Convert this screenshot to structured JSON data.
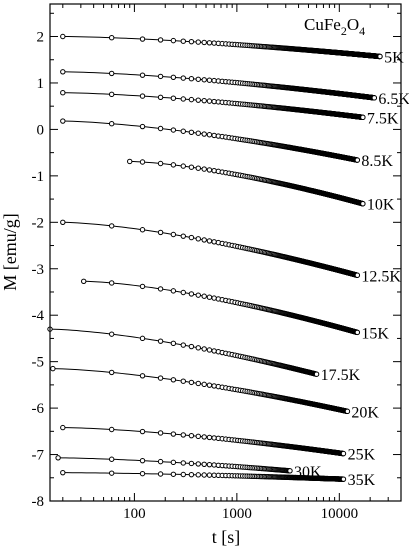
{
  "chart_data": {
    "type": "scatter",
    "title": "CuFe2O4",
    "title_main": "CuFe",
    "title_sub1": "2",
    "title_mid": "O",
    "title_sub2": "4",
    "xlabel": "t [s]",
    "ylabel": "M [emu/g]",
    "xscale": "log",
    "xlim": [
      15,
      40000
    ],
    "ylim": [
      -8,
      2.7
    ],
    "x_ticks": [
      {
        "value": 100,
        "label": "100"
      },
      {
        "value": 1000,
        "label": "1000"
      },
      {
        "value": 10000,
        "label": "10000"
      }
    ],
    "y_ticks": [
      {
        "value": 2,
        "label": "2"
      },
      {
        "value": 1,
        "label": "1"
      },
      {
        "value": 0,
        "label": "0"
      },
      {
        "value": -1,
        "label": "-1"
      },
      {
        "value": -2,
        "label": "-2"
      },
      {
        "value": -3,
        "label": "-3"
      },
      {
        "value": -4,
        "label": "-4"
      },
      {
        "value": -5,
        "label": "-5"
      },
      {
        "value": -6,
        "label": "-6"
      },
      {
        "value": -7,
        "label": "-7"
      },
      {
        "value": -8,
        "label": "-8"
      }
    ],
    "grid": false,
    "series": [
      {
        "name": "5K",
        "x_start": 20,
        "x_end": 25000,
        "y_start": 2.0,
        "y_end": 1.57
      },
      {
        "name": "6.5K",
        "x_start": 20,
        "x_end": 22000,
        "y_start": 1.24,
        "y_end": 0.68
      },
      {
        "name": "7.5K",
        "x_start": 20,
        "x_end": 17000,
        "y_start": 0.79,
        "y_end": 0.26
      },
      {
        "name": "8.5K",
        "x_start": 20,
        "x_end": 15000,
        "y_start": 0.18,
        "y_end": -0.66
      },
      {
        "name": "10K",
        "x_start": 90,
        "x_end": 17000,
        "y_start": -0.69,
        "y_end": -1.6
      },
      {
        "name": "12.5K",
        "x_start": 20,
        "x_end": 15000,
        "y_start": -2.0,
        "y_end": -3.14
      },
      {
        "name": "15K",
        "x_start": 32,
        "x_end": 15000,
        "y_start": -3.27,
        "y_end": -4.37
      },
      {
        "name": "17.5K",
        "x_start": 15,
        "x_end": 6000,
        "y_start": -4.3,
        "y_end": -5.27
      },
      {
        "name": "20K",
        "x_start": 16,
        "x_end": 12000,
        "y_start": -5.15,
        "y_end": -6.07
      },
      {
        "name": "25K",
        "x_start": 20,
        "x_end": 11000,
        "y_start": -6.42,
        "y_end": -6.98
      },
      {
        "name": "30K",
        "x_start": 18,
        "x_end": 3300,
        "y_start": -7.07,
        "y_end": -7.35
      },
      {
        "name": "35K",
        "x_start": 20,
        "x_end": 11000,
        "y_start": -7.39,
        "y_end": -7.53
      }
    ]
  }
}
